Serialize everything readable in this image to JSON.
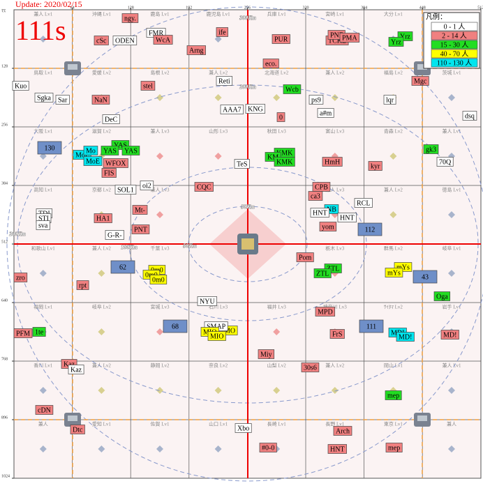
{
  "header": {
    "update": "Update: 2020/02/15",
    "server": "111s"
  },
  "axis": {
    "corner": "ﾏｽ",
    "x_ticks": [
      64,
      128,
      192,
      256,
      320,
      384,
      448,
      512
    ],
    "y_ticks": [
      128,
      256,
      384,
      512,
      640,
      768,
      896,
      1024
    ]
  },
  "legend": {
    "title": "凡例：",
    "entries": [
      {
        "label": "0 - 1 人",
        "color": "#ffffff"
      },
      {
        "label": "2 - 14 人",
        "color": "#f08080"
      },
      {
        "label": "15 - 30 人",
        "color": "#22dd22"
      },
      {
        "label": "40 - 70 人",
        "color": "#ffff00"
      },
      {
        "label": "110 - 130 人",
        "color": "#00e5ee"
      }
    ]
  },
  "distances": [
    "300Km",
    "200Km",
    "200Km",
    "100Km",
    "50Km",
    "50Km"
  ],
  "cells": [
    [
      "兼人 Lv1",
      "沖縄 Lv1",
      "鹿島 Lv1",
      "鹿児島 Lv1",
      "兵庫 Lv1",
      "宮崎 Lv1",
      "大分 Lv1",
      null
    ],
    [
      "鳥取 Lv1",
      "愛媛 Lv2",
      "島根 Lv2",
      "兼人 Lv2",
      "北海道 Lv2",
      "兼人 Lv2",
      "福島 Lv2",
      "茨城 Lv1"
    ],
    [
      "大阪 Lv1",
      "滋賀 Lv2",
      "兼人 Lv3",
      "山形 Lv3",
      "秋田 Lv3",
      "富山 Lv3",
      "青森 Lv2",
      "兼人 Lv1"
    ],
    [
      "高知 Lv1",
      "京都 Lv2",
      "兼人 Lv3",
      null,
      null,
      "兼人 Lv3",
      "兼人 Lv2",
      "徳島 Lv1"
    ],
    [
      "和歌山 Lv1",
      "兼人 Lv2",
      "千葉 Lv3",
      null,
      null,
      "栃木 Lv3",
      "群馬 Lv2",
      "岐阜 Lv1"
    ],
    [
      "福岡 Lv1",
      "岐阜 Lv2",
      "宮城 Lv3",
      "石川 Lv3",
      "福井 Lv3",
      "神奈川 Lv3",
      "ｻｲﾀﾏ Lv2",
      "岩手 Lv1"
    ],
    [
      "香川 Lv1",
      "兼人 Lv2",
      "静岡 Lv2",
      "奈良 Lv2",
      "山梨 Lv2",
      "兼人 Lv2",
      "岡山 Lv1",
      "兼人 Lv1"
    ],
    [
      "兼人",
      "愛知 Lv1",
      "佐賀 Lv1",
      "山口 Lv1",
      "長崎 Lv1",
      "長野 Lv1",
      "東京 Lv1",
      "兼人"
    ]
  ],
  "tags": [
    {
      "text": "ngy.",
      "color": "#f08080"
    },
    {
      "text": "cSc",
      "color": "#f08080"
    },
    {
      "text": "ODEN",
      "color": "#ffffff"
    },
    {
      "text": "FMR",
      "color": "#ffffff"
    },
    {
      "text": "WcA",
      "color": "#f08080"
    },
    {
      "text": "ife",
      "color": "#f08080"
    },
    {
      "text": "Arng",
      "color": "#f08080"
    },
    {
      "text": "PUR",
      "color": "#f08080"
    },
    {
      "text": "TCKL",
      "color": "#f08080"
    },
    {
      "text": "PNF",
      "color": "#f08080"
    },
    {
      "text": "PMA",
      "color": "#f08080"
    },
    {
      "text": "Yrz",
      "color": "#22dd22"
    },
    {
      "text": "Yrz",
      "color": "#22dd22"
    },
    {
      "text": "eco.",
      "color": "#f08080"
    },
    {
      "text": "Kuo",
      "color": "#ffffff"
    },
    {
      "text": "stel",
      "color": "#f08080"
    },
    {
      "text": "Reti",
      "color": "#ffffff"
    },
    {
      "text": "Wcb",
      "color": "#22dd22"
    },
    {
      "text": "Sgka",
      "color": "#ffffff"
    },
    {
      "text": "Sar",
      "color": "#ffffff"
    },
    {
      "text": "NaN",
      "color": "#f08080"
    },
    {
      "text": "ps9",
      "color": "#ffffff"
    },
    {
      "text": "lqr",
      "color": "#ffffff"
    },
    {
      "text": "Mgc",
      "color": "#f08080"
    },
    {
      "text": "AAA7",
      "color": "#ffffff"
    },
    {
      "text": "KNG",
      "color": "#ffffff"
    },
    {
      "text": "a#m",
      "color": "#ffffff"
    },
    {
      "text": "0",
      "color": "#f08080"
    },
    {
      "text": "dsq",
      "color": "#ffffff"
    },
    {
      "text": "DeC",
      "color": "#ffffff"
    },
    {
      "text": "130",
      "color": "#6f8fc8"
    },
    {
      "text": "YAS",
      "color": "#22dd22"
    },
    {
      "text": "MoF",
      "color": "#00e5ee"
    },
    {
      "text": "Mo",
      "color": "#00e5ee"
    },
    {
      "text": "YAS",
      "color": "#22dd22"
    },
    {
      "text": "YAS",
      "color": "#22dd22"
    },
    {
      "text": "MoE",
      "color": "#00e5ee"
    },
    {
      "text": "WFOX",
      "color": "#f08080"
    },
    {
      "text": "FIS",
      "color": "#f08080"
    },
    {
      "text": "gk3",
      "color": "#22dd22"
    },
    {
      "text": "KMK",
      "color": "#22dd22"
    },
    {
      "text": "KM",
      "color": "#22dd22"
    },
    {
      "text": "KMK",
      "color": "#22dd22"
    },
    {
      "text": "HmH",
      "color": "#f08080"
    },
    {
      "text": "TeS",
      "color": "#ffffff"
    },
    {
      "text": "kyr",
      "color": "#f08080"
    },
    {
      "text": "70Q",
      "color": "#ffffff"
    },
    {
      "text": "oi2",
      "color": "#ffffff"
    },
    {
      "text": "CQC",
      "color": "#f08080"
    },
    {
      "text": "SOL1",
      "color": "#ffffff"
    },
    {
      "text": "CPB",
      "color": "#f08080"
    },
    {
      "text": "ca3",
      "color": "#f08080"
    },
    {
      "text": "RCL",
      "color": "#ffffff"
    },
    {
      "text": "TDI",
      "color": "#ffffff"
    },
    {
      "text": "STI",
      "color": "#ffffff"
    },
    {
      "text": "sva",
      "color": "#ffffff"
    },
    {
      "text": "HA1",
      "color": "#f08080"
    },
    {
      "text": "Mt-",
      "color": "#f08080"
    },
    {
      "text": "NB",
      "color": "#00e5ee"
    },
    {
      "text": "HNT",
      "color": "#ffffff"
    },
    {
      "text": "HNT",
      "color": "#ffffff"
    },
    {
      "text": "yom",
      "color": "#f08080"
    },
    {
      "text": "112",
      "color": "#6f8fc8"
    },
    {
      "text": "PNT",
      "color": "#f08080"
    },
    {
      "text": "G-R-",
      "color": "#ffffff"
    },
    {
      "text": "Pom",
      "color": "#f08080"
    },
    {
      "text": "62",
      "color": "#6f8fc8"
    },
    {
      "text": "0m0",
      "color": "#ffff00"
    },
    {
      "text": "0m0",
      "color": "#ffff00"
    },
    {
      "text": "0m0",
      "color": "#ffff00"
    },
    {
      "text": "ZTL",
      "color": "#22dd22"
    },
    {
      "text": "ZTL",
      "color": "#22dd22"
    },
    {
      "text": "mYs",
      "color": "#ffff00"
    },
    {
      "text": "mYs",
      "color": "#ffff00"
    },
    {
      "text": "43",
      "color": "#6f8fc8"
    },
    {
      "text": "zro",
      "color": "#f08080"
    },
    {
      "text": "rpt",
      "color": "#f08080"
    },
    {
      "text": "Oga",
      "color": "#22dd22"
    },
    {
      "text": "NYU",
      "color": "#ffffff"
    },
    {
      "text": "MPD",
      "color": "#f08080"
    },
    {
      "text": "68",
      "color": "#6f8fc8"
    },
    {
      "text": "MO",
      "color": "#ffff00"
    },
    {
      "text": "SMAP",
      "color": "#ffffff"
    },
    {
      "text": "MIO",
      "color": "#ffff00"
    },
    {
      "text": "MIO",
      "color": "#ffff00"
    },
    {
      "text": "111",
      "color": "#6f8fc8"
    },
    {
      "text": "MDI",
      "color": "#00e5ee"
    },
    {
      "text": "MD!",
      "color": "#00e5ee"
    },
    {
      "text": "PFM",
      "color": "#f08080"
    },
    {
      "text": "1te",
      "color": "#22dd22"
    },
    {
      "text": "FrS",
      "color": "#f08080"
    },
    {
      "text": "MD!",
      "color": "#f08080"
    },
    {
      "text": "Miy",
      "color": "#f08080"
    },
    {
      "text": "Kaz",
      "color": "#f08080"
    },
    {
      "text": "Kaz",
      "color": "#ffffff"
    },
    {
      "text": "30s6",
      "color": "#f08080"
    },
    {
      "text": "mep",
      "color": "#22dd22"
    },
    {
      "text": "cDN",
      "color": "#f08080"
    },
    {
      "text": "Dtc",
      "color": "#f08080"
    },
    {
      "text": "Xbo",
      "color": "#ffffff"
    },
    {
      "text": "Arch",
      "color": "#f08080"
    },
    {
      "text": "#0-0",
      "color": "#f08080"
    },
    {
      "text": "HNT",
      "color": "#f08080"
    },
    {
      "text": "mep",
      "color": "#f08080"
    }
  ]
}
